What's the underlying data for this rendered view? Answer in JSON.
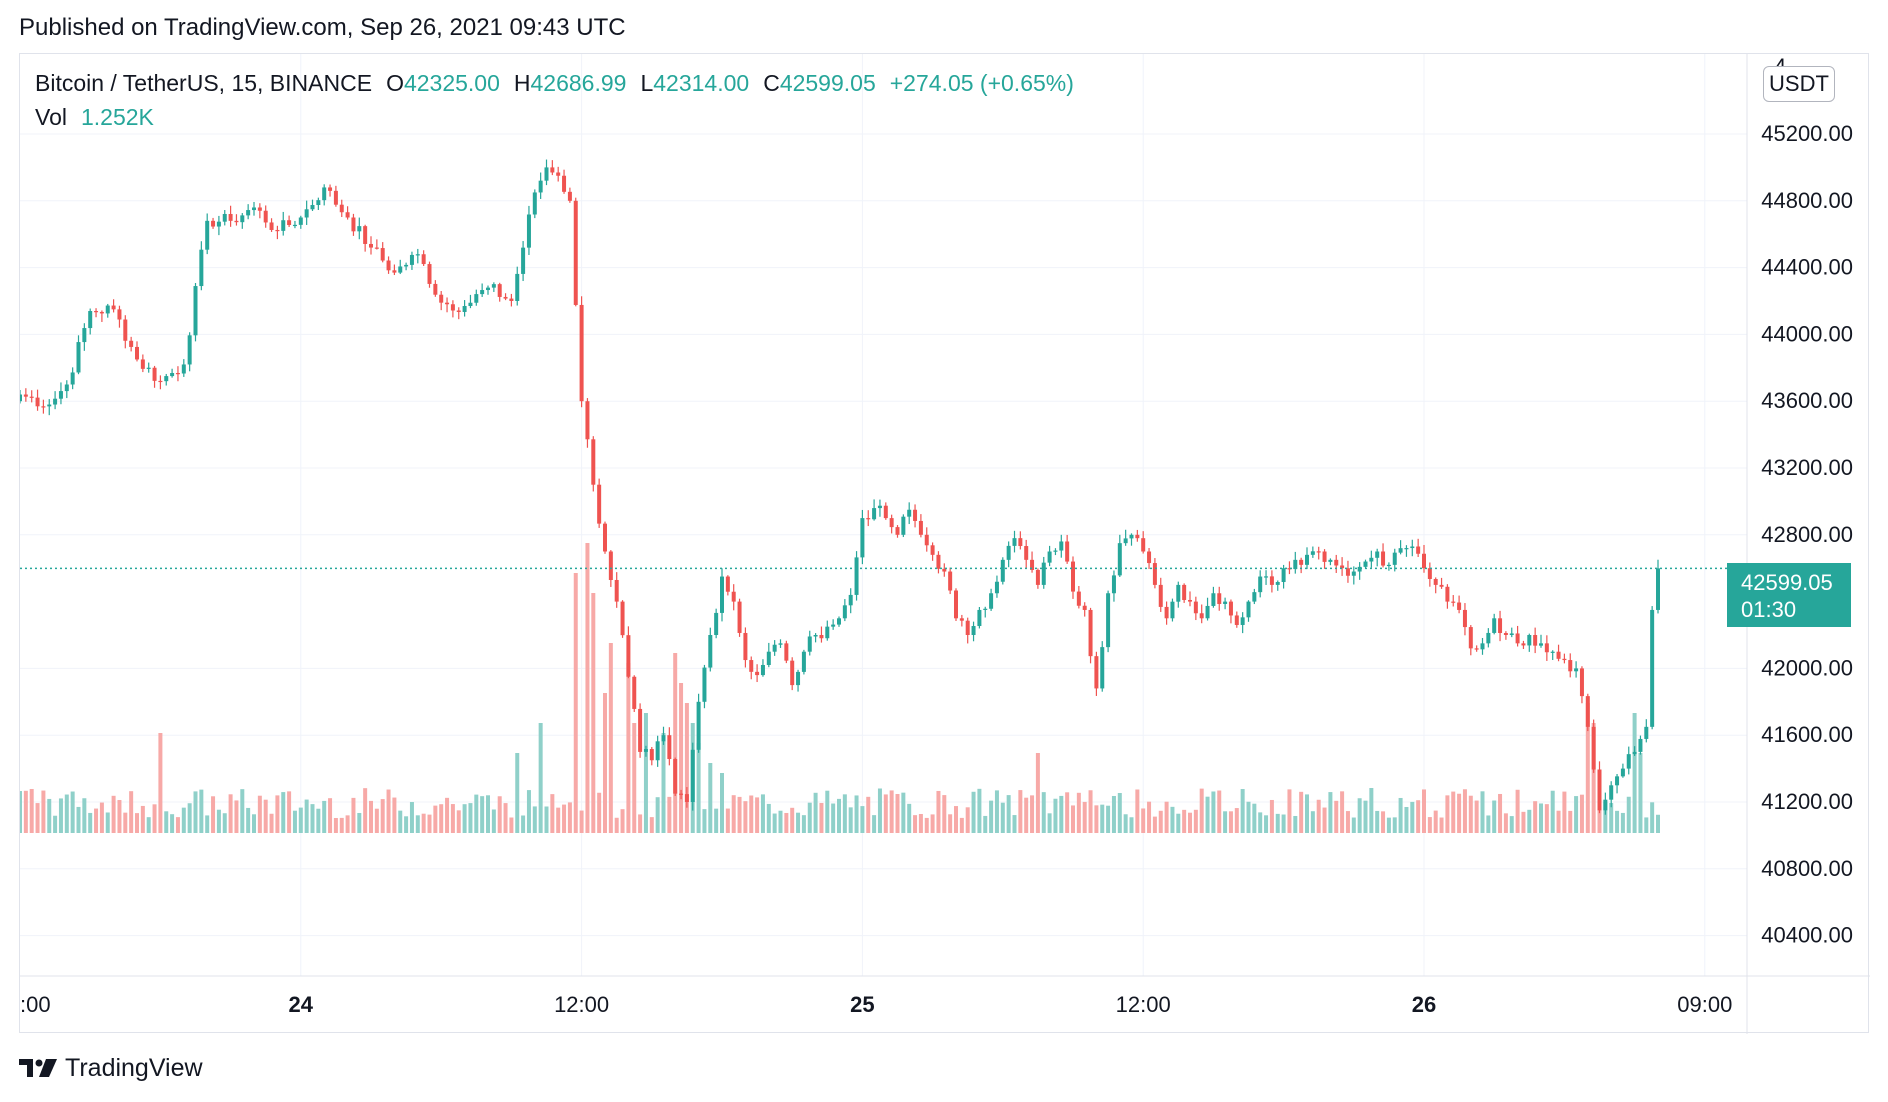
{
  "header": {
    "published": "Published on TradingView.com, Sep 26, 2021 09:43 UTC"
  },
  "legend": {
    "symbol": "Bitcoin / TetherUS, 15, BINANCE",
    "open_label": "O",
    "open": "42325.00",
    "high_label": "H",
    "high": "42686.99",
    "low_label": "L",
    "low": "42314.00",
    "close_label": "C",
    "close": "42599.05",
    "change": "+274.05 (+0.65%)",
    "vol_label": "Vol",
    "vol": "1.252K"
  },
  "currency_button": "USDT",
  "last_price": {
    "price": "42599.05",
    "countdown": "01:30"
  },
  "footer": {
    "brand": "TradingView"
  },
  "colors": {
    "up": "#26a69a",
    "down": "#ef5350",
    "up_vol": "#8fd0c9",
    "down_vol": "#f7a9a7",
    "grid": "#f0f3fa"
  },
  "chart_data": {
    "type": "candlestick",
    "y_ticks": [
      "45200.00",
      "44800.00",
      "44400.00",
      "44000.00",
      "43600.00",
      "43200.00",
      "42800.00",
      "42000.00",
      "41600.00",
      "41200.00",
      "40800.00",
      "40400.00"
    ],
    "ylim": [
      40220,
      45600
    ],
    "x_ticks": [
      {
        "label": ":00",
        "bold": false
      },
      {
        "label": "24",
        "bold": true
      },
      {
        "label": "12:00",
        "bold": false
      },
      {
        "label": "25",
        "bold": true
      },
      {
        "label": "12:00",
        "bold": false
      },
      {
        "label": "26",
        "bold": true
      },
      {
        "label": "09:00",
        "bold": false
      }
    ],
    "bars_per_x_tick": 48,
    "last_close": 42599.05,
    "close_anchors": [
      [
        0,
        43640
      ],
      [
        5,
        43580
      ],
      [
        8,
        43700
      ],
      [
        12,
        44140
      ],
      [
        16,
        44150
      ],
      [
        20,
        43850
      ],
      [
        24,
        43720
      ],
      [
        28,
        43820
      ],
      [
        32,
        44680
      ],
      [
        36,
        44680
      ],
      [
        40,
        44760
      ],
      [
        44,
        44620
      ],
      [
        48,
        44700
      ],
      [
        52,
        44880
      ],
      [
        56,
        44700
      ],
      [
        60,
        44520
      ],
      [
        64,
        44370
      ],
      [
        68,
        44480
      ],
      [
        72,
        44190
      ],
      [
        76,
        44170
      ],
      [
        80,
        44280
      ],
      [
        84,
        44200
      ],
      [
        88,
        44850
      ],
      [
        90,
        45000
      ],
      [
        92,
        44950
      ],
      [
        94,
        44800
      ],
      [
        96,
        43600
      ],
      [
        98,
        43100
      ],
      [
        100,
        42700
      ],
      [
        102,
        42400
      ],
      [
        104,
        41950
      ],
      [
        106,
        41500
      ],
      [
        108,
        41450
      ],
      [
        110,
        41600
      ],
      [
        112,
        41250
      ],
      [
        114,
        41200
      ],
      [
        116,
        41800
      ],
      [
        118,
        42200
      ],
      [
        120,
        42550
      ],
      [
        122,
        42400
      ],
      [
        124,
        42050
      ],
      [
        126,
        41960
      ],
      [
        128,
        42100
      ],
      [
        130,
        42150
      ],
      [
        132,
        41900
      ],
      [
        134,
        42100
      ],
      [
        136,
        42200
      ],
      [
        138,
        42250
      ],
      [
        140,
        42300
      ],
      [
        142,
        42440
      ],
      [
        144,
        42900
      ],
      [
        146,
        42960
      ],
      [
        148,
        42900
      ],
      [
        150,
        42800
      ],
      [
        152,
        42950
      ],
      [
        154,
        42800
      ],
      [
        156,
        42680
      ],
      [
        158,
        42580
      ],
      [
        160,
        42300
      ],
      [
        162,
        42200
      ],
      [
        164,
        42350
      ],
      [
        166,
        42450
      ],
      [
        168,
        42650
      ],
      [
        170,
        42780
      ],
      [
        172,
        42650
      ],
      [
        174,
        42500
      ],
      [
        176,
        42700
      ],
      [
        178,
        42760
      ],
      [
        180,
        42460
      ],
      [
        182,
        42350
      ],
      [
        184,
        41880
      ],
      [
        186,
        42450
      ],
      [
        188,
        42750
      ],
      [
        190,
        42800
      ],
      [
        192,
        42700
      ],
      [
        194,
        42500
      ],
      [
        196,
        42300
      ],
      [
        198,
        42500
      ],
      [
        200,
        42400
      ],
      [
        202,
        42300
      ],
      [
        204,
        42450
      ],
      [
        206,
        42400
      ],
      [
        208,
        42260
      ],
      [
        210,
        42400
      ],
      [
        212,
        42550
      ],
      [
        214,
        42500
      ],
      [
        216,
        42600
      ],
      [
        218,
        42650
      ],
      [
        220,
        42680
      ],
      [
        222,
        42700
      ],
      [
        224,
        42650
      ],
      [
        226,
        42600
      ],
      [
        228,
        42580
      ],
      [
        230,
        42640
      ],
      [
        232,
        42700
      ],
      [
        234,
        42620
      ],
      [
        236,
        42720
      ],
      [
        238,
        42730
      ],
      [
        240,
        42600
      ],
      [
        242,
        42500
      ],
      [
        244,
        42400
      ],
      [
        246,
        42350
      ],
      [
        248,
        42120
      ],
      [
        250,
        42150
      ],
      [
        252,
        42300
      ],
      [
        254,
        42200
      ],
      [
        256,
        42150
      ],
      [
        258,
        42200
      ],
      [
        260,
        42150
      ],
      [
        262,
        42100
      ],
      [
        264,
        42050
      ],
      [
        266,
        42000
      ],
      [
        268,
        41650
      ],
      [
        270,
        41150
      ],
      [
        272,
        41300
      ],
      [
        274,
        41400
      ],
      [
        276,
        41500
      ],
      [
        278,
        41650
      ],
      [
        279,
        42350
      ],
      [
        280,
        42599.05
      ]
    ],
    "volume_baseline": 30,
    "volume_spikes": [
      [
        24,
        100
      ],
      [
        85,
        80
      ],
      [
        89,
        110
      ],
      [
        95,
        260
      ],
      [
        97,
        290
      ],
      [
        98,
        240
      ],
      [
        100,
        140
      ],
      [
        101,
        190
      ],
      [
        104,
        170
      ],
      [
        105,
        110
      ],
      [
        107,
        120
      ],
      [
        110,
        100
      ],
      [
        112,
        180
      ],
      [
        113,
        150
      ],
      [
        114,
        130
      ],
      [
        115,
        110
      ],
      [
        116,
        90
      ],
      [
        118,
        70
      ],
      [
        120,
        60
      ],
      [
        174,
        80
      ],
      [
        231,
        45
      ],
      [
        268,
        130
      ],
      [
        269,
        110
      ],
      [
        276,
        120
      ],
      [
        277,
        80
      ]
    ]
  }
}
